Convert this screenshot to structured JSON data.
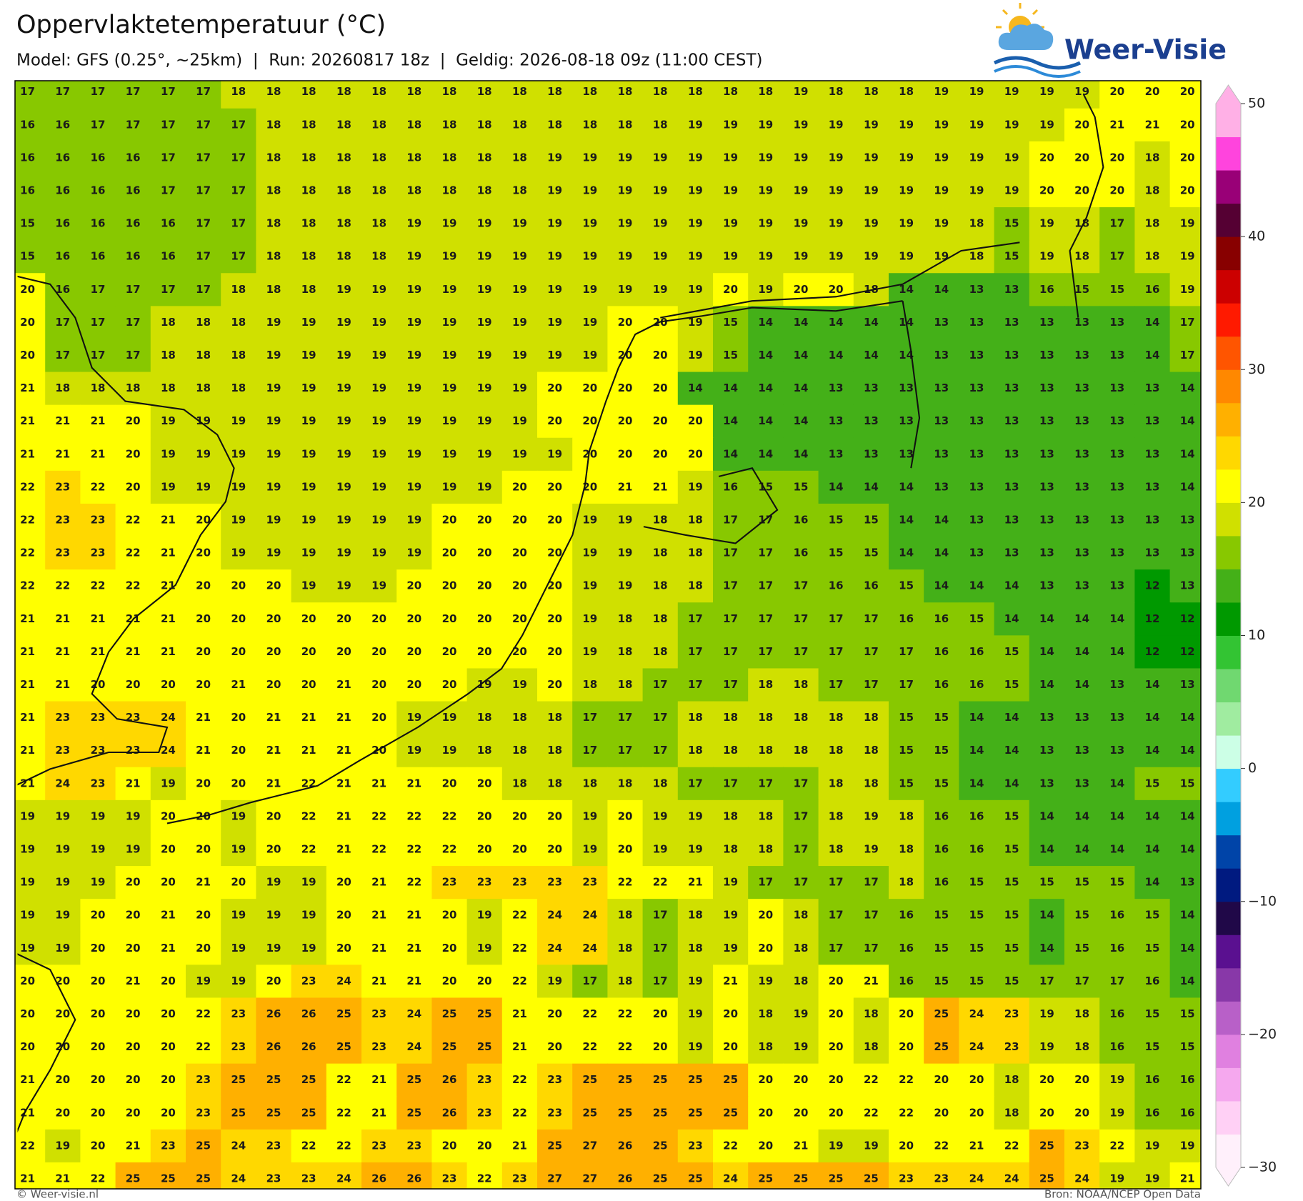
{
  "header": {
    "title": "Oppervlaktetemperatuur (°C)",
    "subtitle": "Model: GFS (0.25°, ~25km)  |  Run: 20260817 18z  |  Geldig: 2026-08-18 09z (11:00 CEST)",
    "logo": "Weer-Visie"
  },
  "chart_data": {
    "type": "heatmap",
    "values": [
      [
        17,
        17,
        17,
        17,
        17,
        17,
        18,
        18,
        18,
        18,
        18,
        18,
        18,
        18,
        18,
        18,
        18,
        18,
        18,
        18,
        18,
        18,
        19,
        18,
        18,
        18,
        19,
        19,
        19,
        19,
        19,
        20,
        20,
        20
      ],
      [
        16,
        16,
        17,
        17,
        17,
        17,
        17,
        18,
        18,
        18,
        18,
        18,
        18,
        18,
        18,
        18,
        18,
        18,
        18,
        19,
        19,
        19,
        19,
        19,
        19,
        19,
        19,
        19,
        19,
        19,
        20,
        21,
        21,
        20
      ],
      [
        16,
        16,
        16,
        16,
        17,
        17,
        17,
        18,
        18,
        18,
        18,
        18,
        18,
        18,
        18,
        19,
        19,
        19,
        19,
        19,
        19,
        19,
        19,
        19,
        19,
        19,
        19,
        19,
        19,
        20,
        20,
        20,
        18,
        20
      ],
      [
        16,
        16,
        16,
        16,
        17,
        17,
        17,
        18,
        18,
        18,
        18,
        18,
        18,
        18,
        18,
        19,
        19,
        19,
        19,
        19,
        19,
        19,
        19,
        19,
        19,
        19,
        19,
        19,
        19,
        20,
        20,
        20,
        18,
        20
      ],
      [
        15,
        16,
        16,
        16,
        16,
        17,
        17,
        18,
        18,
        18,
        18,
        19,
        19,
        19,
        19,
        19,
        19,
        19,
        19,
        19,
        19,
        19,
        19,
        19,
        19,
        19,
        19,
        18,
        15,
        19,
        18,
        17,
        18,
        19
      ],
      [
        15,
        16,
        16,
        16,
        16,
        17,
        17,
        18,
        18,
        18,
        18,
        19,
        19,
        19,
        19,
        19,
        19,
        19,
        19,
        19,
        19,
        19,
        19,
        19,
        19,
        19,
        19,
        18,
        15,
        19,
        18,
        17,
        18,
        19
      ],
      [
        20,
        16,
        17,
        17,
        17,
        17,
        18,
        18,
        18,
        19,
        19,
        19,
        19,
        19,
        19,
        19,
        19,
        19,
        19,
        19,
        20,
        19,
        20,
        20,
        18,
        14,
        14,
        13,
        13,
        16,
        15,
        15,
        16,
        19
      ],
      [
        20,
        17,
        17,
        17,
        18,
        18,
        18,
        19,
        19,
        19,
        19,
        19,
        19,
        19,
        19,
        19,
        19,
        20,
        20,
        19,
        15,
        14,
        14,
        14,
        14,
        14,
        13,
        13,
        13,
        13,
        13,
        13,
        14,
        17
      ],
      [
        20,
        17,
        17,
        17,
        18,
        18,
        18,
        19,
        19,
        19,
        19,
        19,
        19,
        19,
        19,
        19,
        19,
        20,
        20,
        19,
        15,
        14,
        14,
        14,
        14,
        14,
        13,
        13,
        13,
        13,
        13,
        13,
        14,
        17
      ],
      [
        21,
        18,
        18,
        18,
        18,
        18,
        18,
        19,
        19,
        19,
        19,
        19,
        19,
        19,
        19,
        20,
        20,
        20,
        20,
        14,
        14,
        14,
        14,
        13,
        13,
        13,
        13,
        13,
        13,
        13,
        13,
        13,
        13,
        14
      ],
      [
        21,
        21,
        21,
        20,
        19,
        19,
        19,
        19,
        19,
        19,
        19,
        19,
        19,
        19,
        19,
        20,
        20,
        20,
        20,
        20,
        14,
        14,
        14,
        13,
        13,
        13,
        13,
        13,
        13,
        13,
        13,
        13,
        13,
        14
      ],
      [
        21,
        21,
        21,
        20,
        19,
        19,
        19,
        19,
        19,
        19,
        19,
        19,
        19,
        19,
        19,
        19,
        20,
        20,
        20,
        20,
        14,
        14,
        14,
        13,
        13,
        13,
        13,
        13,
        13,
        13,
        13,
        13,
        13,
        14
      ],
      [
        22,
        23,
        22,
        20,
        19,
        19,
        19,
        19,
        19,
        19,
        19,
        19,
        19,
        19,
        20,
        20,
        20,
        21,
        21,
        19,
        16,
        15,
        15,
        14,
        14,
        14,
        13,
        13,
        13,
        13,
        13,
        13,
        13,
        14
      ],
      [
        22,
        23,
        23,
        22,
        21,
        20,
        19,
        19,
        19,
        19,
        19,
        19,
        20,
        20,
        20,
        20,
        19,
        19,
        18,
        18,
        17,
        17,
        16,
        15,
        15,
        14,
        14,
        13,
        13,
        13,
        13,
        13,
        13,
        13
      ],
      [
        22,
        23,
        23,
        22,
        21,
        20,
        19,
        19,
        19,
        19,
        19,
        19,
        20,
        20,
        20,
        20,
        19,
        19,
        18,
        18,
        17,
        17,
        16,
        15,
        15,
        14,
        14,
        13,
        13,
        13,
        13,
        13,
        13,
        13
      ],
      [
        22,
        22,
        22,
        22,
        21,
        20,
        20,
        20,
        19,
        19,
        19,
        20,
        20,
        20,
        20,
        20,
        19,
        19,
        18,
        18,
        17,
        17,
        17,
        16,
        16,
        15,
        14,
        14,
        14,
        13,
        13,
        13,
        12,
        13
      ],
      [
        21,
        21,
        21,
        21,
        21,
        20,
        20,
        20,
        20,
        20,
        20,
        20,
        20,
        20,
        20,
        20,
        19,
        18,
        18,
        17,
        17,
        17,
        17,
        17,
        17,
        16,
        16,
        15,
        14,
        14,
        14,
        14,
        12,
        12
      ],
      [
        21,
        21,
        21,
        21,
        21,
        20,
        20,
        20,
        20,
        20,
        20,
        20,
        20,
        20,
        20,
        20,
        19,
        18,
        18,
        17,
        17,
        17,
        17,
        17,
        17,
        17,
        16,
        16,
        15,
        14,
        14,
        14,
        12,
        12
      ],
      [
        21,
        21,
        20,
        20,
        20,
        20,
        21,
        20,
        20,
        21,
        20,
        20,
        20,
        19,
        19,
        20,
        18,
        18,
        17,
        17,
        17,
        18,
        18,
        17,
        17,
        17,
        16,
        16,
        15,
        14,
        14,
        13,
        14,
        13
      ],
      [
        21,
        23,
        23,
        23,
        24,
        21,
        20,
        21,
        21,
        21,
        20,
        19,
        19,
        18,
        18,
        18,
        17,
        17,
        17,
        18,
        18,
        18,
        18,
        18,
        18,
        15,
        15,
        14,
        14,
        13,
        13,
        13,
        14,
        14
      ],
      [
        21,
        23,
        23,
        23,
        24,
        21,
        20,
        21,
        21,
        21,
        20,
        19,
        19,
        18,
        18,
        18,
        17,
        17,
        17,
        18,
        18,
        18,
        18,
        18,
        18,
        15,
        15,
        14,
        14,
        13,
        13,
        13,
        14,
        14
      ],
      [
        21,
        24,
        23,
        21,
        19,
        20,
        20,
        21,
        22,
        21,
        21,
        21,
        20,
        20,
        18,
        18,
        18,
        18,
        18,
        17,
        17,
        17,
        17,
        18,
        18,
        15,
        15,
        14,
        14,
        13,
        13,
        14,
        15,
        15
      ],
      [
        19,
        19,
        19,
        19,
        20,
        20,
        19,
        20,
        22,
        21,
        22,
        22,
        22,
        20,
        20,
        20,
        19,
        20,
        19,
        19,
        18,
        18,
        17,
        18,
        19,
        18,
        16,
        16,
        15,
        14,
        14,
        14,
        14,
        14
      ],
      [
        19,
        19,
        19,
        19,
        20,
        20,
        19,
        20,
        22,
        21,
        22,
        22,
        22,
        20,
        20,
        20,
        19,
        20,
        19,
        19,
        18,
        18,
        17,
        18,
        19,
        18,
        16,
        16,
        15,
        14,
        14,
        14,
        14,
        14
      ],
      [
        19,
        19,
        19,
        20,
        20,
        21,
        20,
        19,
        19,
        20,
        21,
        22,
        23,
        23,
        23,
        23,
        23,
        22,
        22,
        21,
        19,
        17,
        17,
        17,
        17,
        18,
        16,
        15,
        15,
        15,
        15,
        15,
        14,
        13
      ],
      [
        19,
        19,
        20,
        20,
        21,
        20,
        19,
        19,
        19,
        20,
        21,
        21,
        20,
        19,
        22,
        24,
        24,
        18,
        17,
        18,
        19,
        20,
        18,
        17,
        17,
        16,
        15,
        15,
        15,
        14,
        15,
        16,
        15,
        14
      ],
      [
        19,
        19,
        20,
        20,
        21,
        20,
        19,
        19,
        19,
        20,
        21,
        21,
        20,
        19,
        22,
        24,
        24,
        18,
        17,
        18,
        19,
        20,
        18,
        17,
        17,
        16,
        15,
        15,
        15,
        14,
        15,
        16,
        15,
        14
      ],
      [
        20,
        20,
        20,
        21,
        20,
        19,
        19,
        20,
        23,
        24,
        21,
        21,
        20,
        20,
        22,
        19,
        17,
        18,
        17,
        19,
        21,
        19,
        18,
        20,
        21,
        16,
        15,
        15,
        15,
        17,
        17,
        17,
        16,
        14
      ],
      [
        20,
        20,
        20,
        20,
        20,
        22,
        23,
        26,
        26,
        25,
        23,
        24,
        25,
        25,
        21,
        20,
        22,
        22,
        20,
        19,
        20,
        18,
        19,
        20,
        18,
        20,
        25,
        24,
        23,
        19,
        18,
        16,
        15,
        15
      ],
      [
        20,
        20,
        20,
        20,
        20,
        22,
        23,
        26,
        26,
        25,
        23,
        24,
        25,
        25,
        21,
        20,
        22,
        22,
        20,
        19,
        20,
        18,
        19,
        20,
        18,
        20,
        25,
        24,
        23,
        19,
        18,
        16,
        15,
        15
      ],
      [
        21,
        20,
        20,
        20,
        20,
        23,
        25,
        25,
        25,
        22,
        21,
        25,
        26,
        23,
        22,
        23,
        25,
        25,
        25,
        25,
        25,
        20,
        20,
        20,
        22,
        22,
        20,
        20,
        18,
        20,
        20,
        19,
        16,
        16
      ],
      [
        21,
        20,
        20,
        20,
        20,
        23,
        25,
        25,
        25,
        22,
        21,
        25,
        26,
        23,
        22,
        23,
        25,
        25,
        25,
        25,
        25,
        20,
        20,
        20,
        22,
        22,
        20,
        20,
        18,
        20,
        20,
        19,
        16,
        16
      ],
      [
        22,
        19,
        20,
        21,
        23,
        25,
        24,
        23,
        22,
        22,
        23,
        23,
        20,
        20,
        21,
        25,
        27,
        26,
        25,
        23,
        22,
        20,
        21,
        19,
        19,
        20,
        22,
        21,
        22,
        25,
        23,
        22,
        19,
        19
      ],
      [
        21,
        21,
        22,
        25,
        25,
        25,
        24,
        23,
        23,
        24,
        26,
        26,
        23,
        22,
        23,
        27,
        27,
        26,
        25,
        25,
        24,
        25,
        25,
        25,
        25,
        23,
        23,
        24,
        24,
        25,
        24,
        19,
        19,
        21
      ]
    ],
    "zlim": [
      -30,
      50
    ],
    "zticks": [
      50,
      40,
      30,
      20,
      10,
      0,
      {
        "value": -10,
        "label": "−10"
      },
      {
        "value": -20,
        "label": "−20"
      },
      {
        "value": -30,
        "label": "−30"
      }
    ],
    "colors": [
      "#fff0fb",
      "#ffd0f5",
      "#f5a8ee",
      "#e080e0",
      "#b860c8",
      "#8838a8",
      "#5a1090",
      "#200848",
      "#001a80",
      "#0044a8",
      "#00a0e0",
      "#33ccff",
      "#ccffe6",
      "#a0eca0",
      "#70d870",
      "#33c433",
      "#009900",
      "#44b018",
      "#88c800",
      "#d0e000",
      "#ffff00",
      "#ffd800",
      "#ffb000",
      "#ff8800",
      "#ff5500",
      "#ff1a00",
      "#cc0000",
      "#880000",
      "#550033",
      "#990077",
      "#ff44dd",
      "#ffb0e6"
    ]
  },
  "footer": {
    "left": "© Weer-visie.nl",
    "right": "Bron: NOAA/NCEP Open Data"
  }
}
